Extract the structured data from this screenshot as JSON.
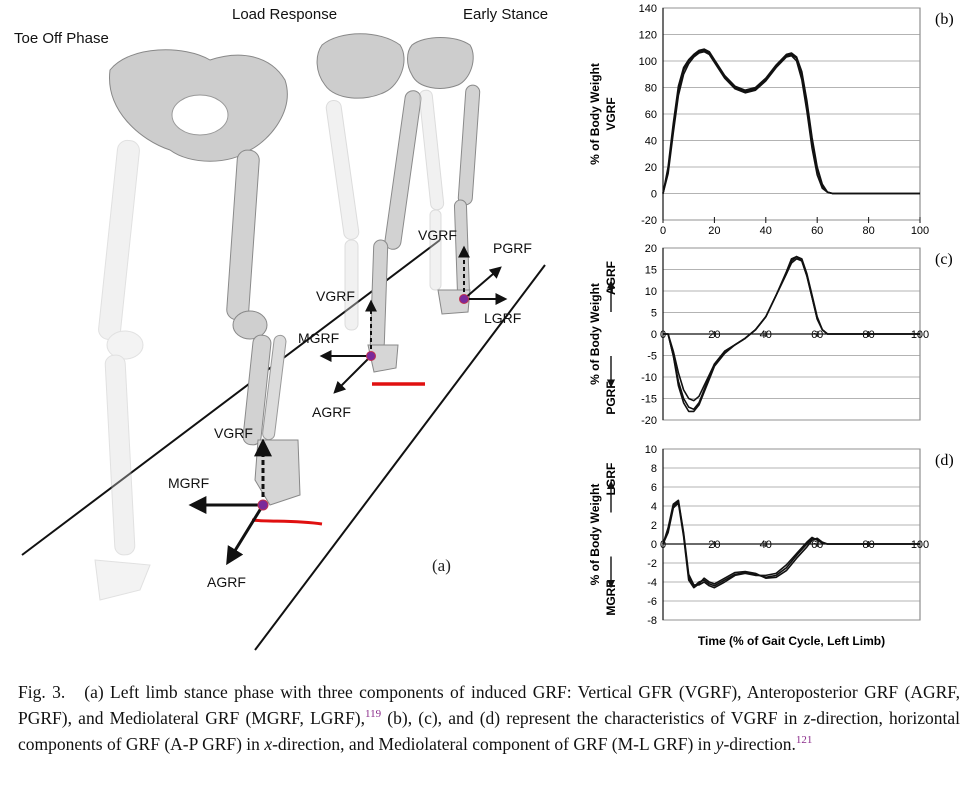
{
  "figure_a": {
    "phase_labels": [
      "Toe Off Phase",
      "Load Response",
      "Early Stance"
    ],
    "force_labels": {
      "toe_off": [
        "VGRF",
        "MGRF",
        "AGRF"
      ],
      "load_response": [
        "VGRF",
        "MGRF",
        "AGRF"
      ],
      "early_stance": [
        "VGRF",
        "PGRF",
        "LGRF"
      ]
    },
    "panel_tag": "(a)"
  },
  "chart_data": [
    {
      "type": "line",
      "panel_tag": "(b)",
      "ylabel_top": "% of Body Weight",
      "ylabel_bottom": "VGRF",
      "xlim": [
        0,
        100
      ],
      "ylim": [
        -20,
        140
      ],
      "xticks": [
        "0",
        "20",
        "40",
        "60",
        "80",
        "100"
      ],
      "yticks": [
        "140",
        "120",
        "100",
        "80",
        "60",
        "40",
        "20",
        "0",
        "-20"
      ],
      "grid": true,
      "x": [
        0,
        2,
        4,
        6,
        8,
        10,
        12,
        14,
        16,
        18,
        20,
        24,
        28,
        32,
        36,
        40,
        44,
        48,
        50,
        52,
        54,
        56,
        58,
        60,
        62,
        64,
        66,
        70,
        100
      ],
      "series": [
        {
          "values": [
            0,
            18,
            50,
            78,
            93,
            100,
            104,
            107,
            108,
            106,
            100,
            88,
            80,
            77,
            79,
            86,
            96,
            104,
            105,
            102,
            90,
            68,
            40,
            18,
            6,
            1,
            0,
            0,
            0
          ]
        },
        {
          "values": [
            0,
            15,
            46,
            74,
            90,
            98,
            103,
            106,
            107,
            105,
            99,
            87,
            79,
            76,
            78,
            85,
            95,
            103,
            104,
            100,
            86,
            62,
            34,
            14,
            4,
            1,
            0,
            0,
            0
          ]
        },
        {
          "values": [
            0,
            20,
            53,
            81,
            95,
            101,
            105,
            108,
            109,
            107,
            101,
            89,
            81,
            78,
            80,
            87,
            97,
            105,
            106,
            103,
            92,
            70,
            42,
            20,
            7,
            1,
            0,
            0,
            0
          ]
        }
      ]
    },
    {
      "type": "line",
      "panel_tag": "(c)",
      "ylabel_top": "AGRF",
      "ylabel_mid": "% of Body Weight",
      "ylabel_bottom": "PGRF",
      "xlim": [
        0,
        100
      ],
      "ylim": [
        -20,
        20
      ],
      "xticks": [
        "0",
        "20",
        "40",
        "60",
        "80",
        "100"
      ],
      "yticks": [
        "20",
        "15",
        "10",
        "5",
        "0",
        "-5",
        "-10",
        "-15",
        "-20"
      ],
      "grid": true,
      "x": [
        0,
        2,
        4,
        6,
        8,
        10,
        12,
        14,
        16,
        18,
        20,
        24,
        28,
        32,
        36,
        40,
        44,
        48,
        50,
        52,
        54,
        56,
        58,
        60,
        62,
        64,
        66,
        70,
        100
      ],
      "series": [
        {
          "values": [
            0,
            0,
            -5,
            -11,
            -15,
            -17,
            -17.5,
            -16,
            -13,
            -10,
            -7,
            -4,
            -2.5,
            -1,
            1,
            4,
            9,
            14,
            17,
            18,
            17.5,
            14,
            9,
            4,
            1,
            0,
            0,
            0,
            0
          ]
        },
        {
          "values": [
            0,
            0,
            -4,
            -9,
            -13,
            -15,
            -15.5,
            -14.5,
            -12,
            -9.5,
            -7,
            -4,
            -2.5,
            -1,
            1,
            4,
            9,
            14,
            16.5,
            17.5,
            17,
            13.5,
            8.5,
            3.5,
            1,
            0,
            0,
            0,
            0
          ]
        },
        {
          "values": [
            0,
            0,
            -5,
            -12,
            -16,
            -18,
            -18,
            -16.5,
            -13.5,
            -10.5,
            -7.5,
            -4.5,
            -2.5,
            -1,
            1,
            4,
            9,
            14.5,
            17.5,
            18,
            17,
            13.5,
            8.5,
            3.5,
            1,
            0,
            0,
            0,
            0
          ]
        }
      ]
    },
    {
      "type": "line",
      "panel_tag": "(d)",
      "ylabel_top": "LGRF",
      "ylabel_mid": "% of Body Weight",
      "ylabel_bottom": "MGRF",
      "xlabel": "Time (% of Gait Cycle, Left Limb)",
      "xlim": [
        0,
        100
      ],
      "ylim": [
        -8,
        10
      ],
      "xticks": [
        "0",
        "20",
        "40",
        "60",
        "80",
        "100"
      ],
      "yticks": [
        "10",
        "8",
        "6",
        "4",
        "2",
        "0",
        "-2",
        "-4",
        "-6",
        "-8"
      ],
      "grid": true,
      "x": [
        0,
        2,
        4,
        6,
        8,
        10,
        12,
        14,
        16,
        18,
        20,
        24,
        28,
        32,
        36,
        40,
        44,
        48,
        52,
        56,
        58,
        60,
        62,
        64,
        66,
        70,
        100
      ],
      "series": [
        {
          "values": [
            0,
            1.5,
            4,
            4.5,
            1,
            -3.5,
            -4.5,
            -4,
            -3.8,
            -4.2,
            -4.4,
            -3.8,
            -3.2,
            -3,
            -3.2,
            -3.5,
            -3.3,
            -2.5,
            -1.2,
            0,
            0.6,
            0.5,
            0.1,
            0,
            0,
            0,
            0
          ]
        },
        {
          "values": [
            0,
            1.2,
            3.8,
            4.3,
            0.8,
            -3.8,
            -4.6,
            -4.2,
            -3.6,
            -4,
            -4.2,
            -3.6,
            -3,
            -2.9,
            -3.1,
            -3.6,
            -3.5,
            -2.8,
            -1.5,
            -0.3,
            0.4,
            0.6,
            0.2,
            0,
            0,
            0,
            0
          ]
        },
        {
          "values": [
            0,
            1.7,
            4.2,
            4.6,
            1.2,
            -3.2,
            -4.3,
            -4.3,
            -4,
            -4.4,
            -4.6,
            -4,
            -3.3,
            -3.1,
            -3.3,
            -3.3,
            -3.1,
            -2.2,
            -1,
            0.2,
            0.7,
            0.4,
            0.1,
            0,
            0,
            0,
            0
          ]
        }
      ]
    }
  ],
  "caption": {
    "fig_label": "Fig. 3.",
    "text_1": "(a) Left limb stance phase with three components of induced GRF: Vertical GFR (VGRF), Anteroposterior GRF (AGRF, PGRF), and Mediolateral GRF (MGRF, LGRF),",
    "ref_1": "119",
    "text_2": " (b), (c), and (d) represent the characteristics of VGRF in ",
    "z": "z",
    "text_3": "-direction, horizontal components of GRF (A-P GRF) in ",
    "x": "x",
    "text_4": "-direction, and Mediolateral component of GRF (M-L GRF) in ",
    "y": "y",
    "text_5": "-direction.",
    "ref_2": "121"
  },
  "colors": {
    "marker_red": "#e01010",
    "force_point": "#7a2a9a",
    "bone": "#cfcfcf",
    "bone_dark": "#8a8a8a",
    "line": "#111111",
    "grid": "#9a9a9a"
  }
}
